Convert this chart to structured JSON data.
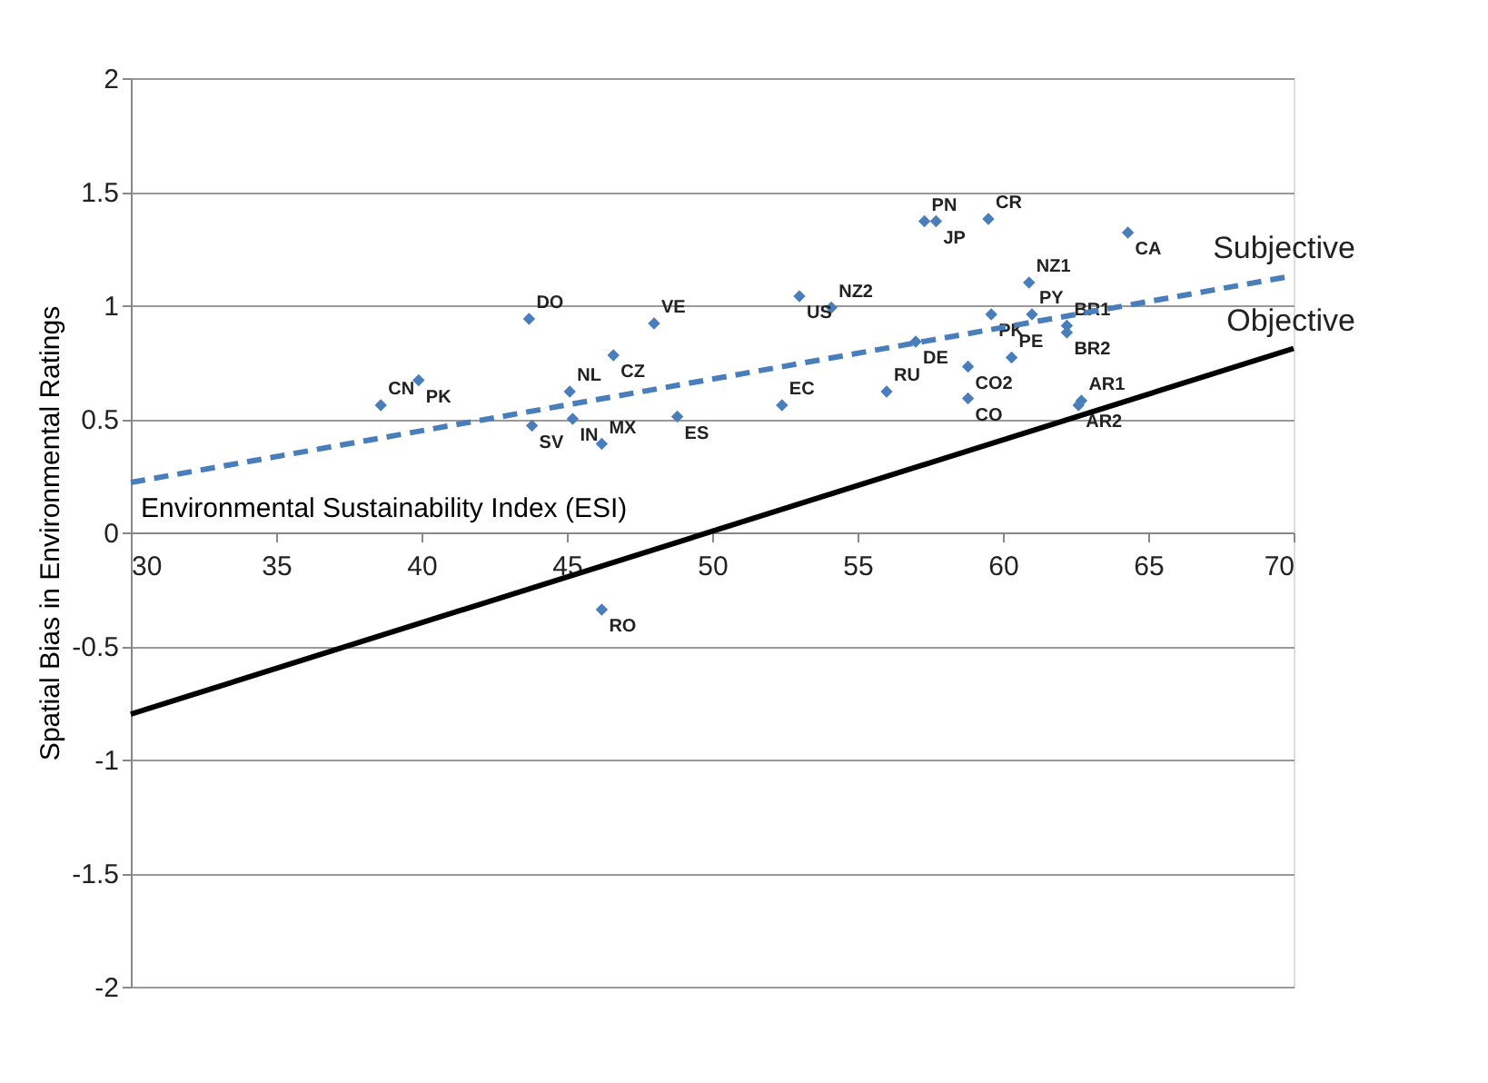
{
  "chart_data": {
    "type": "scatter",
    "xlabel": "Environmental Sustainability Index (ESI)",
    "ylabel": "Spatial Bias in Environmental Ratings",
    "xlim": [
      30,
      70
    ],
    "xticks": [
      30,
      35,
      40,
      45,
      50,
      55,
      60,
      65,
      70
    ],
    "ylim": [
      -2,
      2
    ],
    "yticks": [
      -2,
      -1.5,
      -1,
      -0.5,
      0,
      0.5,
      1,
      1.5,
      2
    ],
    "grid": "y",
    "series": [
      {
        "color": "#4a7ebb",
        "marker": "diamond",
        "x": [
          38.6,
          39.9,
          43.7,
          46.6,
          48.0,
          45.2,
          45.1,
          43.8,
          46.2,
          48.8,
          52.4,
          53.0,
          54.1,
          46.2,
          57.3,
          57.7,
          59.5,
          64.3,
          60.9,
          59.6,
          61.0,
          62.2,
          62.2,
          57.0,
          60.3,
          58.8,
          56.0,
          58.8,
          62.7,
          62.6
        ],
        "values": [
          0.56,
          0.67,
          0.94,
          0.78,
          0.92,
          0.5,
          0.62,
          0.47,
          0.39,
          0.51,
          0.56,
          1.04,
          0.99,
          -0.34,
          1.37,
          1.37,
          1.38,
          1.32,
          1.1,
          0.96,
          0.96,
          0.88,
          0.91,
          0.84,
          0.77,
          0.73,
          0.62,
          0.59,
          0.58,
          0.56
        ],
        "value_labels": [
          "CN",
          "PK",
          "DO",
          "CZ",
          "VE",
          "IN",
          "NL",
          "SV",
          "MX",
          "ES",
          "EC",
          "US",
          "NZ2",
          "RO",
          "PN",
          "JP",
          "CR",
          "CA",
          "NZ1",
          "PK",
          "PY",
          "BR2",
          "BR1",
          "DE",
          "PE",
          "CO2",
          "RU",
          "CO",
          "AR1",
          "AR2"
        ]
      },
      {
        "type": "line",
        "name": "Subjective",
        "color": "#4a7ebb",
        "line_style": "dashed",
        "x": [
          30,
          70
        ],
        "values": [
          0.22,
          1.13
        ]
      },
      {
        "type": "line",
        "name": "Objective",
        "color": "#000000",
        "line_style": "solid",
        "x": [
          30,
          70
        ],
        "values": [
          -0.8,
          0.81
        ]
      }
    ]
  }
}
